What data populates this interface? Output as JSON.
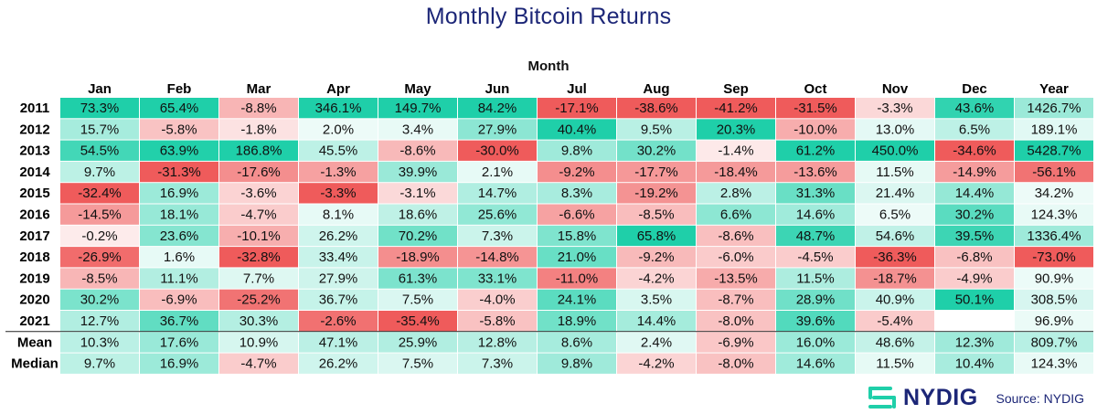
{
  "chart_data": {
    "type": "heatmap",
    "title": "Monthly Bitcoin Returns",
    "xlabel": "Month",
    "ylabel": "",
    "columns": [
      "Jan",
      "Feb",
      "Mar",
      "Apr",
      "May",
      "Jun",
      "Jul",
      "Aug",
      "Sep",
      "Oct",
      "Nov",
      "Dec",
      "Year"
    ],
    "rows": [
      {
        "label": "2011",
        "values": [
          "73.3%",
          "65.4%",
          "-8.8%",
          "346.1%",
          "149.7%",
          "84.2%",
          "-17.1%",
          "-38.6%",
          "-41.2%",
          "-31.5%",
          "-3.3%",
          "43.6%",
          "1426.7%"
        ]
      },
      {
        "label": "2012",
        "values": [
          "15.7%",
          "-5.8%",
          "-1.8%",
          "2.0%",
          "3.4%",
          "27.9%",
          "40.4%",
          "9.5%",
          "20.3%",
          "-10.0%",
          "13.0%",
          "6.5%",
          "189.1%"
        ]
      },
      {
        "label": "2013",
        "values": [
          "54.5%",
          "63.9%",
          "186.8%",
          "45.5%",
          "-8.6%",
          "-30.0%",
          "9.8%",
          "30.2%",
          "-1.4%",
          "61.2%",
          "450.0%",
          "-34.6%",
          "5428.7%"
        ]
      },
      {
        "label": "2014",
        "values": [
          "9.7%",
          "-31.3%",
          "-17.6%",
          "-1.3%",
          "39.9%",
          "2.1%",
          "-9.2%",
          "-17.7%",
          "-18.4%",
          "-13.6%",
          "11.5%",
          "-14.9%",
          "-56.1%"
        ]
      },
      {
        "label": "2015",
        "values": [
          "-32.4%",
          "16.9%",
          "-3.6%",
          "-3.3%",
          "-3.1%",
          "14.7%",
          "8.3%",
          "-19.2%",
          "2.8%",
          "31.3%",
          "21.4%",
          "14.4%",
          "34.2%"
        ]
      },
      {
        "label": "2016",
        "values": [
          "-14.5%",
          "18.1%",
          "-4.7%",
          "8.1%",
          "18.6%",
          "25.6%",
          "-6.6%",
          "-8.5%",
          "6.6%",
          "14.6%",
          "6.5%",
          "30.2%",
          "124.3%"
        ]
      },
      {
        "label": "2017",
        "values": [
          "-0.2%",
          "23.6%",
          "-10.1%",
          "26.2%",
          "70.2%",
          "7.3%",
          "15.8%",
          "65.8%",
          "-8.6%",
          "48.7%",
          "54.6%",
          "39.5%",
          "1336.4%"
        ]
      },
      {
        "label": "2018",
        "values": [
          "-26.9%",
          "1.6%",
          "-32.8%",
          "33.4%",
          "-18.9%",
          "-14.8%",
          "21.0%",
          "-9.2%",
          "-6.0%",
          "-4.5%",
          "-36.3%",
          "-6.8%",
          "-73.0%"
        ]
      },
      {
        "label": "2019",
        "values": [
          "-8.5%",
          "11.1%",
          "7.7%",
          "27.9%",
          "61.3%",
          "33.1%",
          "-11.0%",
          "-4.2%",
          "-13.5%",
          "11.5%",
          "-18.7%",
          "-4.9%",
          "90.9%"
        ]
      },
      {
        "label": "2020",
        "values": [
          "30.2%",
          "-6.9%",
          "-25.2%",
          "36.7%",
          "7.5%",
          "-4.0%",
          "24.1%",
          "3.5%",
          "-8.7%",
          "28.9%",
          "40.9%",
          "50.1%",
          "308.5%"
        ]
      },
      {
        "label": "2021",
        "values": [
          "12.7%",
          "36.7%",
          "30.3%",
          "-2.6%",
          "-35.4%",
          "-5.8%",
          "18.9%",
          "14.4%",
          "-8.0%",
          "39.6%",
          "-5.4%",
          "",
          "96.9%"
        ]
      }
    ],
    "summary_rows": [
      {
        "label": "Mean",
        "values": [
          "10.3%",
          "17.6%",
          "10.9%",
          "47.1%",
          "25.9%",
          "12.8%",
          "8.6%",
          "2.4%",
          "-6.9%",
          "16.0%",
          "48.6%",
          "12.3%",
          "809.7%"
        ]
      },
      {
        "label": "Median",
        "values": [
          "9.7%",
          "16.9%",
          "-4.7%",
          "26.2%",
          "7.5%",
          "7.3%",
          "9.8%",
          "-4.2%",
          "-8.0%",
          "14.6%",
          "11.5%",
          "10.4%",
          "124.3%"
        ]
      }
    ],
    "colors": {
      "positive_strong": "#1fcfa9",
      "negative_strong": "#ef5b5b",
      "neutral": "#ffffff",
      "title": "#1c2677"
    },
    "grid": false,
    "legend": "none"
  },
  "footer": {
    "brand": "NYDIG",
    "logo_icon": "nydig-logo-icon",
    "source": "Source: NYDIG"
  }
}
